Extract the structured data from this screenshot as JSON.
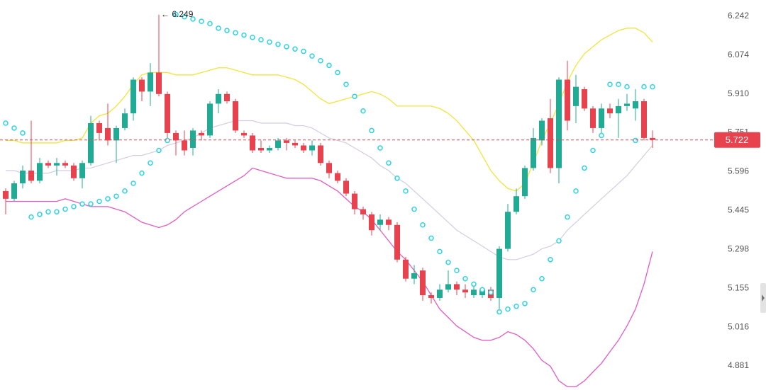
{
  "chart_data": {
    "type": "candlestick",
    "log_scale": true,
    "ylim": [
      4.799,
      6.314
    ],
    "yticks": [
      6.242,
      6.074,
      {
        "value": 5.91,
        "label": "5.910"
      },
      5.751,
      5.596,
      5.445,
      5.298,
      5.155,
      5.016,
      4.881
    ],
    "up_color": "#22ab94",
    "down_color": "#e8424f",
    "open": [
      5.52,
      5.49,
      5.55,
      5.6,
      5.56,
      5.63,
      5.62,
      5.63,
      5.62,
      5.57,
      5.63,
      5.79,
      5.77,
      5.72,
      5.77,
      5.83,
      5.97,
      5.92,
      6.0,
      5.91,
      5.75,
      5.72,
      5.69,
      5.75,
      5.74,
      5.87,
      5.91,
      5.88,
      5.75,
      5.74,
      5.69,
      5.68,
      5.69,
      5.72,
      5.71,
      5.7,
      5.68,
      5.7,
      5.63,
      5.59,
      5.56,
      5.51,
      5.45,
      5.43,
      5.39,
      5.41,
      5.39,
      5.26,
      5.19,
      5.22,
      5.13,
      5.12,
      5.15,
      5.17,
      5.15,
      5.13,
      5.13,
      5.15,
      5.12,
      5.3,
      5.44,
      5.5,
      5.61,
      5.72,
      5.81,
      5.61,
      5.97,
      5.86,
      5.93,
      5.85,
      5.77,
      5.85,
      5.83,
      5.86,
      5.85,
      5.88,
      5.73
    ],
    "high": [
      5.53,
      5.56,
      5.62,
      5.8,
      5.65,
      5.64,
      5.65,
      5.64,
      5.63,
      5.64,
      5.82,
      5.8,
      5.87,
      5.78,
      5.85,
      5.98,
      5.98,
      6.04,
      6.249,
      5.92,
      5.76,
      5.76,
      5.77,
      5.76,
      5.88,
      5.93,
      5.92,
      5.89,
      5.76,
      5.75,
      5.72,
      5.7,
      5.73,
      5.73,
      5.72,
      5.71,
      5.72,
      5.71,
      5.64,
      5.6,
      5.57,
      5.52,
      5.46,
      5.44,
      5.43,
      5.42,
      5.4,
      5.27,
      5.24,
      5.23,
      5.14,
      5.17,
      5.22,
      5.18,
      5.17,
      5.18,
      5.16,
      5.16,
      5.31,
      5.47,
      5.53,
      5.62,
      5.77,
      5.81,
      5.89,
      5.98,
      6.05,
      5.99,
      5.94,
      5.86,
      5.87,
      5.87,
      5.89,
      5.91,
      5.93,
      5.89,
      5.76
    ],
    "low": [
      5.43,
      5.48,
      5.53,
      5.55,
      5.55,
      5.61,
      5.58,
      5.61,
      5.56,
      5.53,
      5.62,
      5.72,
      5.7,
      5.63,
      5.76,
      5.8,
      5.88,
      5.86,
      5.9,
      5.73,
      5.66,
      5.66,
      5.66,
      5.72,
      5.73,
      5.83,
      5.87,
      5.75,
      5.73,
      5.67,
      5.67,
      5.67,
      5.68,
      5.68,
      5.69,
      5.67,
      5.66,
      5.62,
      5.57,
      5.55,
      5.5,
      5.43,
      5.41,
      5.35,
      5.37,
      5.37,
      5.25,
      5.18,
      5.17,
      5.11,
      5.1,
      5.11,
      5.14,
      5.13,
      5.12,
      5.12,
      5.12,
      5.11,
      5.08,
      5.29,
      5.43,
      5.49,
      5.6,
      5.7,
      5.59,
      5.55,
      5.76,
      5.79,
      5.84,
      5.75,
      5.74,
      5.81,
      5.73,
      5.84,
      5.8,
      5.72,
      5.69
    ],
    "close": [
      5.49,
      5.55,
      5.6,
      5.56,
      5.63,
      5.62,
      5.63,
      5.62,
      5.57,
      5.63,
      5.79,
      5.75,
      5.72,
      5.77,
      5.83,
      5.97,
      5.92,
      6.0,
      5.91,
      5.75,
      5.72,
      5.68,
      5.76,
      5.74,
      5.87,
      5.91,
      5.88,
      5.76,
      5.74,
      5.68,
      5.68,
      5.69,
      5.72,
      5.71,
      5.7,
      5.68,
      5.7,
      5.63,
      5.59,
      5.56,
      5.51,
      5.45,
      5.43,
      5.37,
      5.41,
      5.39,
      5.26,
      5.19,
      5.21,
      5.13,
      5.12,
      5.15,
      5.17,
      5.15,
      5.14,
      5.15,
      5.15,
      5.12,
      5.3,
      5.44,
      5.5,
      5.61,
      5.73,
      5.8,
      5.61,
      5.97,
      5.8,
      5.94,
      5.85,
      5.77,
      5.85,
      5.83,
      5.86,
      5.87,
      5.88,
      5.73,
      5.722
    ],
    "upper_band": {
      "color": "#f2e43c",
      "values": [
        5.72,
        5.72,
        5.71,
        5.71,
        5.71,
        5.71,
        5.71,
        5.72,
        5.72,
        5.73,
        5.79,
        5.82,
        5.83,
        5.86,
        5.9,
        5.95,
        5.99,
        6.0,
        6.0,
        6.0,
        5.99,
        5.99,
        5.99,
        6.0,
        6.01,
        6.02,
        6.02,
        6.01,
        6.0,
        5.99,
        5.99,
        5.99,
        5.99,
        5.98,
        5.97,
        5.95,
        5.92,
        5.89,
        5.87,
        5.88,
        5.89,
        5.9,
        5.91,
        5.92,
        5.91,
        5.89,
        5.86,
        5.86,
        5.86,
        5.86,
        5.86,
        5.85,
        5.83,
        5.8,
        5.76,
        5.72,
        5.66,
        5.6,
        5.56,
        5.53,
        5.52,
        5.55,
        5.63,
        5.72,
        5.79,
        5.87,
        5.96,
        6.03,
        6.08,
        6.11,
        6.14,
        6.16,
        6.18,
        6.19,
        6.19,
        6.17,
        6.13
      ]
    },
    "middle_band": {
      "color": "#d4cce0",
      "values": [
        5.6,
        5.6,
        5.59,
        5.59,
        5.59,
        5.59,
        5.6,
        5.6,
        5.6,
        5.61,
        5.61,
        5.62,
        5.63,
        5.64,
        5.65,
        5.66,
        5.66,
        5.67,
        5.68,
        5.7,
        5.71,
        5.72,
        5.73,
        5.75,
        5.77,
        5.78,
        5.79,
        5.8,
        5.8,
        5.8,
        5.79,
        5.79,
        5.79,
        5.79,
        5.78,
        5.78,
        5.77,
        5.75,
        5.73,
        5.72,
        5.71,
        5.69,
        5.67,
        5.65,
        5.62,
        5.6,
        5.57,
        5.55,
        5.52,
        5.49,
        5.46,
        5.43,
        5.4,
        5.37,
        5.35,
        5.33,
        5.31,
        5.29,
        5.27,
        5.26,
        5.26,
        5.27,
        5.28,
        5.3,
        5.31,
        5.33,
        5.37,
        5.4,
        5.43,
        5.46,
        5.49,
        5.52,
        5.55,
        5.58,
        5.62,
        5.66,
        5.7
      ]
    },
    "lower_band": {
      "color": "#e25cc4",
      "values": [
        5.48,
        5.48,
        5.48,
        5.48,
        5.48,
        5.48,
        5.48,
        5.49,
        5.48,
        5.47,
        5.46,
        5.46,
        5.46,
        5.45,
        5.44,
        5.42,
        5.4,
        5.39,
        5.38,
        5.39,
        5.41,
        5.44,
        5.46,
        5.48,
        5.5,
        5.52,
        5.54,
        5.56,
        5.58,
        5.61,
        5.6,
        5.59,
        5.58,
        5.57,
        5.57,
        5.57,
        5.57,
        5.56,
        5.54,
        5.52,
        5.49,
        5.46,
        5.44,
        5.41,
        5.37,
        5.33,
        5.29,
        5.26,
        5.22,
        5.18,
        5.13,
        5.08,
        5.05,
        5.02,
        5.0,
        4.98,
        4.97,
        4.97,
        4.98,
        5.0,
        4.99,
        4.97,
        4.94,
        4.9,
        4.88,
        4.83,
        4.81,
        4.81,
        4.83,
        4.86,
        4.89,
        4.93,
        4.97,
        5.02,
        5.08,
        5.17,
        5.29
      ]
    },
    "sar": {
      "color": "#2fd3e3",
      "values": [
        5.79,
        5.77,
        5.75,
        5.42,
        5.43,
        5.44,
        5.44,
        5.45,
        5.46,
        5.47,
        5.47,
        5.48,
        5.49,
        5.5,
        5.52,
        5.55,
        5.59,
        5.63,
        5.68,
        5.72,
        6.25,
        6.24,
        6.23,
        6.22,
        6.21,
        6.19,
        6.18,
        6.17,
        6.16,
        6.15,
        6.14,
        6.13,
        6.12,
        6.11,
        6.1,
        6.09,
        6.07,
        6.05,
        6.03,
        6.0,
        5.95,
        5.9,
        5.84,
        5.76,
        5.69,
        5.63,
        5.57,
        5.52,
        5.45,
        5.39,
        5.34,
        5.29,
        5.25,
        5.22,
        5.19,
        5.17,
        5.15,
        5.14,
        5.07,
        5.08,
        5.09,
        5.1,
        5.15,
        5.19,
        5.26,
        5.33,
        5.42,
        5.52,
        5.61,
        5.68,
        5.74,
        5.95,
        5.95,
        5.94,
        5.72,
        5.94,
        5.94
      ]
    },
    "last_price": {
      "value": 5.722,
      "color": "#e8424f"
    },
    "max_annotation": {
      "value": 6.249,
      "label": "← 6.249"
    }
  }
}
